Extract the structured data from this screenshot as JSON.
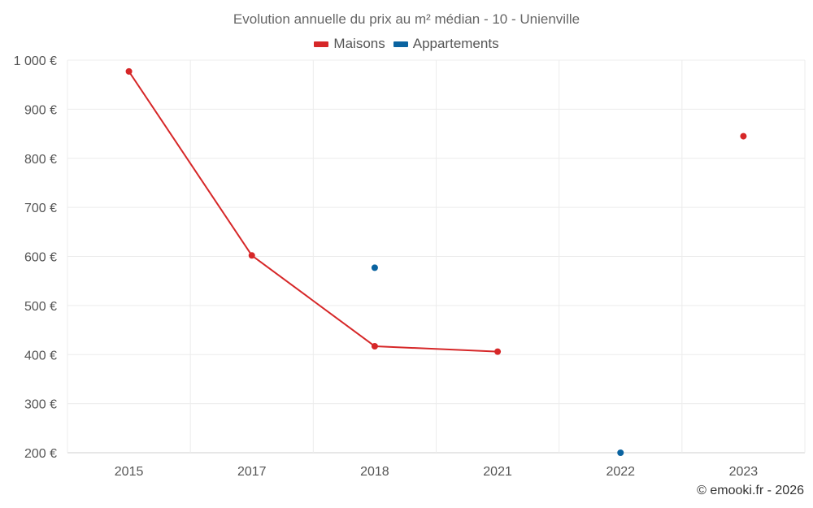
{
  "chart_data": {
    "type": "line",
    "title": "Evolution annuelle du prix au m² médian - 10 - Unienville",
    "categories": [
      "2015",
      "2017",
      "2018",
      "2021",
      "2022",
      "2023"
    ],
    "ylim": [
      200,
      1000
    ],
    "yticks": [
      200,
      300,
      400,
      500,
      600,
      700,
      800,
      900,
      1000
    ],
    "ytick_labels": [
      "200 €",
      "300 €",
      "400 €",
      "500 €",
      "600 €",
      "700 €",
      "800 €",
      "900 €",
      "1 000 €"
    ],
    "grid": true,
    "legend_position": "top-center",
    "series": [
      {
        "name": "Maisons",
        "color": "#d62728",
        "values": [
          977,
          602,
          417,
          406,
          null,
          845
        ]
      },
      {
        "name": "Appartements",
        "color": "#0a63a0",
        "values": [
          null,
          null,
          577,
          null,
          200,
          null
        ]
      }
    ]
  },
  "credit": "© emooki.fr - 2026"
}
